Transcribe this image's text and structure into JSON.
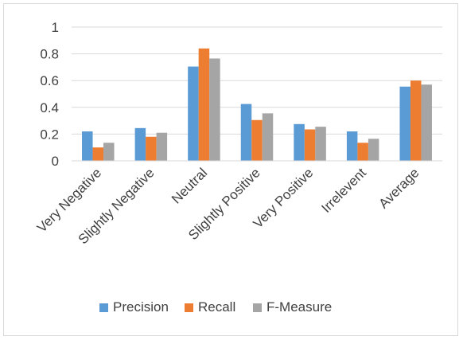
{
  "chart_data": {
    "type": "bar",
    "title": "",
    "xlabel": "",
    "ylabel": "",
    "categories": [
      "Very Negative",
      "Slightly Negative",
      "Neutral",
      "Slightly Positive",
      "Very Positive",
      "Irrelevent",
      "Average"
    ],
    "series": [
      {
        "name": "Precision",
        "color": "#5b9bd5",
        "values": [
          0.22,
          0.245,
          0.705,
          0.425,
          0.275,
          0.22,
          0.555
        ]
      },
      {
        "name": "Recall",
        "color": "#ed7d31",
        "values": [
          0.1,
          0.18,
          0.84,
          0.305,
          0.235,
          0.135,
          0.6
        ]
      },
      {
        "name": "F-Measure",
        "color": "#a5a5a5",
        "values": [
          0.135,
          0.21,
          0.765,
          0.355,
          0.255,
          0.165,
          0.57
        ]
      }
    ],
    "ylim": [
      0,
      1
    ],
    "yticks": [
      "0",
      "0.2",
      "0.4",
      "0.6",
      "0.8",
      "1"
    ],
    "grid": true,
    "legend_position": "bottom"
  }
}
